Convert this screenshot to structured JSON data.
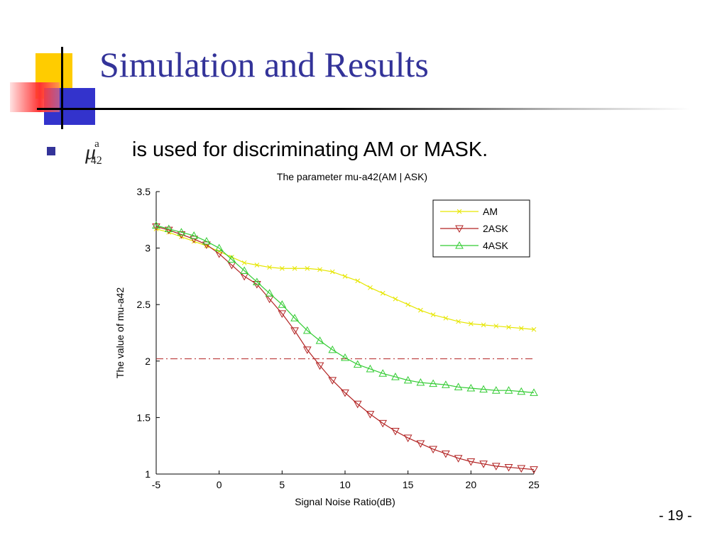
{
  "slide": {
    "title": "Simulation and Results",
    "bullet_symbol": "μ",
    "bullet_superscript": "a",
    "bullet_subscript": "42",
    "bullet_text": "is used for discriminating AM or MASK.",
    "page_number": "- 19 -"
  },
  "colors": {
    "title": "#333399",
    "bullet": "#333399",
    "deco_yellow": "#ffcc00",
    "deco_red": "#ff3333",
    "deco_blue": "#3333cc",
    "am": "#e6e600",
    "ask2": "#b22222",
    "ask4": "#33cc33",
    "threshold": "#b22222"
  },
  "chart_data": {
    "type": "line",
    "title": "The parameter mu-a42(AM | ASK)",
    "xlabel": "Signal Noise Ratio(dB)",
    "ylabel": "The value of mu-a42",
    "xlim": [
      -5,
      25
    ],
    "ylim": [
      1,
      3.5
    ],
    "xticks": [
      -5,
      0,
      5,
      10,
      15,
      20,
      25
    ],
    "yticks": [
      1,
      1.5,
      2,
      2.5,
      3,
      3.5
    ],
    "xtick_labels": [
      "-5",
      "0",
      "5",
      "10",
      "15",
      "20",
      "25"
    ],
    "ytick_labels": [
      "1",
      "1.5",
      "2",
      "2.5",
      "3",
      "3.5"
    ],
    "legend_position": "top-right",
    "grid": false,
    "x": [
      -5,
      -4,
      -3,
      -2,
      -1,
      0,
      1,
      2,
      3,
      4,
      5,
      6,
      7,
      8,
      9,
      10,
      11,
      12,
      13,
      14,
      15,
      16,
      17,
      18,
      19,
      20,
      21,
      22,
      23,
      24,
      25
    ],
    "series": [
      {
        "name": "AM",
        "marker": "x",
        "values": [
          3.17,
          3.14,
          3.1,
          3.06,
          3.02,
          2.97,
          2.92,
          2.87,
          2.85,
          2.83,
          2.82,
          2.82,
          2.82,
          2.81,
          2.79,
          2.75,
          2.71,
          2.65,
          2.6,
          2.55,
          2.5,
          2.45,
          2.41,
          2.38,
          2.35,
          2.33,
          2.32,
          2.31,
          2.3,
          2.29,
          2.28
        ]
      },
      {
        "name": "2ASK",
        "marker": "triangle-down",
        "values": [
          3.19,
          3.16,
          3.12,
          3.08,
          3.03,
          2.95,
          2.85,
          2.75,
          2.68,
          2.55,
          2.42,
          2.27,
          2.1,
          1.96,
          1.83,
          1.72,
          1.62,
          1.53,
          1.45,
          1.38,
          1.32,
          1.27,
          1.22,
          1.18,
          1.14,
          1.11,
          1.09,
          1.07,
          1.06,
          1.05,
          1.04
        ]
      },
      {
        "name": "4ASK",
        "marker": "triangle-up",
        "values": [
          3.2,
          3.17,
          3.14,
          3.11,
          3.06,
          3.0,
          2.9,
          2.8,
          2.7,
          2.6,
          2.5,
          2.38,
          2.27,
          2.18,
          2.1,
          2.03,
          1.97,
          1.93,
          1.89,
          1.86,
          1.83,
          1.81,
          1.8,
          1.79,
          1.77,
          1.76,
          1.75,
          1.74,
          1.74,
          1.73,
          1.72
        ]
      }
    ],
    "threshold": {
      "y": 2.02,
      "style": "dash-dot"
    }
  }
}
